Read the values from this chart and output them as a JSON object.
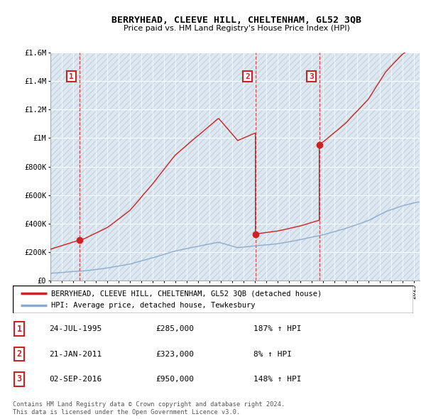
{
  "title": "BERRYHEAD, CLEEVE HILL, CHELTENHAM, GL52 3QB",
  "subtitle": "Price paid vs. HM Land Registry's House Price Index (HPI)",
  "legend_line1": "BERRYHEAD, CLEEVE HILL, CHELTENHAM, GL52 3QB (detached house)",
  "legend_line2": "HPI: Average price, detached house, Tewkesbury",
  "table_data": [
    [
      "1",
      "24-JUL-1995",
      "£285,000",
      "187% ↑ HPI"
    ],
    [
      "2",
      "21-JAN-2011",
      "£323,000",
      "8% ↑ HPI"
    ],
    [
      "3",
      "02-SEP-2016",
      "£950,000",
      "148% ↑ HPI"
    ]
  ],
  "footnote1": "Contains HM Land Registry data © Crown copyright and database right 2024.",
  "footnote2": "This data is licensed under the Open Government Licence v3.0.",
  "sale_dates_decimal": [
    1995.56,
    2011.05,
    2016.67
  ],
  "sale_prices": [
    285000,
    323000,
    950000
  ],
  "sale_labels": [
    "1",
    "2",
    "3"
  ],
  "hpi_color": "#88aacc",
  "price_color": "#cc2222",
  "ylim": [
    0,
    1600000
  ],
  "xlim_start": 1993.0,
  "xlim_end": 2025.5,
  "yticks": [
    0,
    200000,
    400000,
    600000,
    800000,
    1000000,
    1200000,
    1400000,
    1600000
  ],
  "chart_bg_color": "#dde8f0",
  "hatch_color": "#c8d4e0"
}
